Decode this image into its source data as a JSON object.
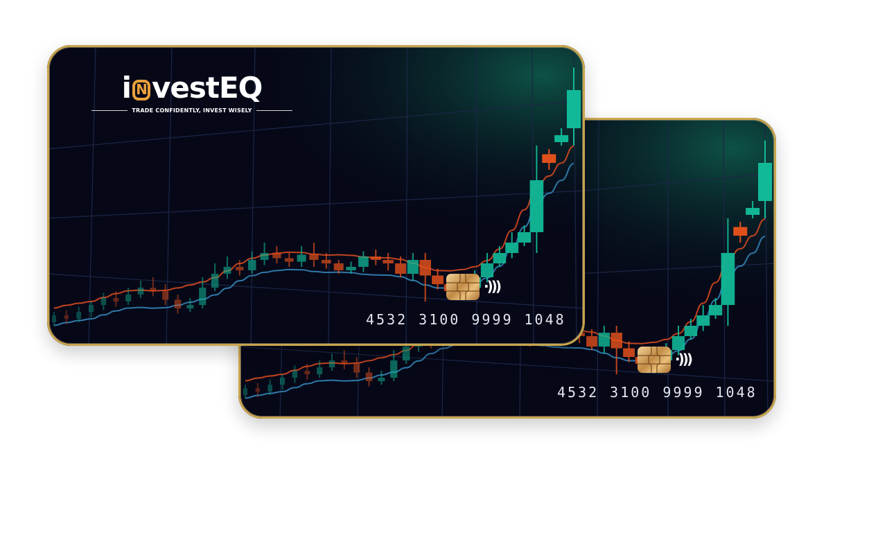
{
  "brand": {
    "logo_prefix": "i",
    "logo_mark_glyph": "N",
    "logo_suffix": "vestEQ",
    "tagline": "TRADE CONFIDENTLY, INVEST WISELY"
  },
  "cards": [
    {
      "id": "front",
      "card_number_groups": [
        "4532",
        "3100",
        "9999",
        "1048"
      ],
      "has_logo": true
    },
    {
      "id": "back",
      "card_number_groups": [
        "4532",
        "3100",
        "9999",
        "1048"
      ],
      "has_logo": false
    }
  ],
  "icons": {
    "chip": "emv-chip-icon",
    "contactless": "contactless-icon",
    "contactless_glyph": "·)))"
  },
  "colors": {
    "card_bg": "#060818",
    "bull": "#12b998",
    "bear": "#e8521c",
    "ma_red": "#c2441f",
    "ma_blue": "#2f78a8",
    "grid": "#1c2746",
    "gold_border": "#c9a54e",
    "logo_accent": "#e8a03a"
  },
  "chart_data": {
    "type": "candlestick",
    "candles": [
      {
        "o": 28,
        "c": 32,
        "h": 34,
        "l": 26
      },
      {
        "o": 32,
        "c": 30,
        "h": 35,
        "l": 27
      },
      {
        "o": 30,
        "c": 34,
        "h": 37,
        "l": 28
      },
      {
        "o": 34,
        "c": 38,
        "h": 40,
        "l": 31
      },
      {
        "o": 38,
        "c": 42,
        "h": 45,
        "l": 35
      },
      {
        "o": 42,
        "c": 40,
        "h": 46,
        "l": 37
      },
      {
        "o": 40,
        "c": 44,
        "h": 48,
        "l": 38
      },
      {
        "o": 44,
        "c": 48,
        "h": 52,
        "l": 42
      },
      {
        "o": 48,
        "c": 46,
        "h": 54,
        "l": 43
      },
      {
        "o": 46,
        "c": 41,
        "h": 50,
        "l": 38
      },
      {
        "o": 41,
        "c": 36,
        "h": 44,
        "l": 33
      },
      {
        "o": 36,
        "c": 38,
        "h": 42,
        "l": 34
      },
      {
        "o": 38,
        "c": 48,
        "h": 54,
        "l": 36
      },
      {
        "o": 48,
        "c": 56,
        "h": 62,
        "l": 46
      },
      {
        "o": 56,
        "c": 60,
        "h": 66,
        "l": 53
      },
      {
        "o": 60,
        "c": 58,
        "h": 64,
        "l": 55
      },
      {
        "o": 58,
        "c": 64,
        "h": 69,
        "l": 56
      },
      {
        "o": 64,
        "c": 68,
        "h": 74,
        "l": 61
      },
      {
        "o": 68,
        "c": 65,
        "h": 72,
        "l": 62
      },
      {
        "o": 65,
        "c": 63,
        "h": 68,
        "l": 60
      },
      {
        "o": 63,
        "c": 67,
        "h": 72,
        "l": 60
      },
      {
        "o": 67,
        "c": 64,
        "h": 74,
        "l": 60
      },
      {
        "o": 64,
        "c": 62,
        "h": 68,
        "l": 59
      },
      {
        "o": 62,
        "c": 58,
        "h": 64,
        "l": 56
      },
      {
        "o": 58,
        "c": 60,
        "h": 63,
        "l": 56
      },
      {
        "o": 60,
        "c": 66,
        "h": 69,
        "l": 57
      },
      {
        "o": 66,
        "c": 64,
        "h": 70,
        "l": 61
      },
      {
        "o": 64,
        "c": 62,
        "h": 68,
        "l": 58
      },
      {
        "o": 62,
        "c": 56,
        "h": 66,
        "l": 54
      },
      {
        "o": 56,
        "c": 64,
        "h": 68,
        "l": 52
      },
      {
        "o": 64,
        "c": 55,
        "h": 68,
        "l": 40
      },
      {
        "o": 55,
        "c": 50,
        "h": 59,
        "l": 47
      },
      {
        "o": 50,
        "c": 46,
        "h": 53,
        "l": 42
      },
      {
        "o": 46,
        "c": 48,
        "h": 52,
        "l": 44
      },
      {
        "o": 48,
        "c": 54,
        "h": 58,
        "l": 45
      },
      {
        "o": 54,
        "c": 62,
        "h": 68,
        "l": 51
      },
      {
        "o": 62,
        "c": 68,
        "h": 72,
        "l": 60
      },
      {
        "o": 68,
        "c": 74,
        "h": 80,
        "l": 65
      },
      {
        "o": 74,
        "c": 80,
        "h": 84,
        "l": 72
      },
      {
        "o": 80,
        "c": 110,
        "h": 130,
        "l": 68
      },
      {
        "o": 125,
        "c": 120,
        "h": 128,
        "l": 116
      },
      {
        "o": 132,
        "c": 136,
        "h": 140,
        "l": 130
      },
      {
        "o": 140,
        "c": 162,
        "h": 175,
        "l": 130
      }
    ],
    "ylim": [
      20,
      180
    ]
  }
}
